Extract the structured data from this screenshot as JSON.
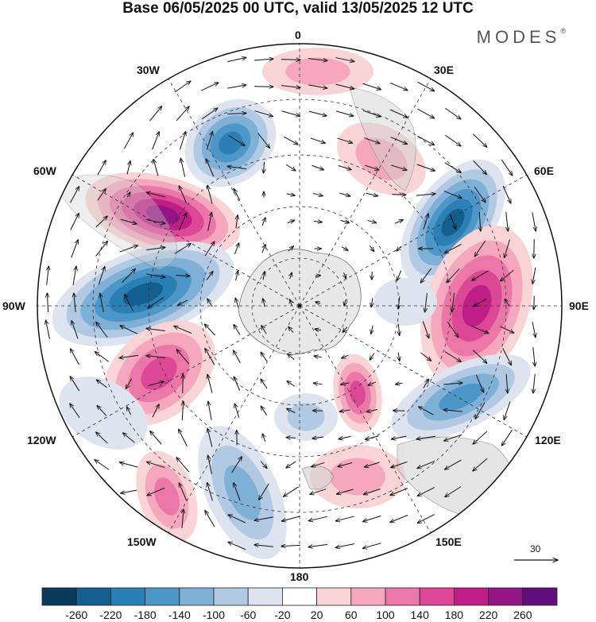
{
  "header": {
    "title": "Base 06/05/2025 00 UTC, valid 13/05/2025 12 UTC",
    "brand": "MODES",
    "brand_mark": "®"
  },
  "longitude_labels": [
    {
      "id": "lon-0",
      "text": "0"
    },
    {
      "id": "lon-30e",
      "text": "30E"
    },
    {
      "id": "lon-60e",
      "text": "60E"
    },
    {
      "id": "lon-90e",
      "text": "90E"
    },
    {
      "id": "lon-120e",
      "text": "120E"
    },
    {
      "id": "lon-150e",
      "text": "150E"
    },
    {
      "id": "lon-180",
      "text": "180"
    },
    {
      "id": "lon-150w",
      "text": "150W"
    },
    {
      "id": "lon-120w",
      "text": "120W"
    },
    {
      "id": "lon-90w",
      "text": "90W"
    },
    {
      "id": "lon-60w",
      "text": "60W"
    },
    {
      "id": "lon-30w",
      "text": "30W"
    }
  ],
  "vector_scale": {
    "label": "30"
  },
  "colorbar": {
    "labels": [
      "-260",
      "-220",
      "-180",
      "-140",
      "-100",
      "-60",
      "-20",
      "20",
      "60",
      "100",
      "140",
      "180",
      "220",
      "260"
    ],
    "colors": [
      "#0b3a5a",
      "#135f8f",
      "#2a7fb5",
      "#4d97c8",
      "#7fb0d6",
      "#b2c9e3",
      "#dde3ef",
      "#ffffff",
      "#f9d4d6",
      "#f5a8bd",
      "#eb77a8",
      "#dc4896",
      "#bf1e86",
      "#941483",
      "#5e0f7c"
    ]
  },
  "colors": {
    "land": "#cfcfcf",
    "antarctica": "#e6e6e6",
    "grid": "#333333",
    "arrow": "#111111"
  }
}
